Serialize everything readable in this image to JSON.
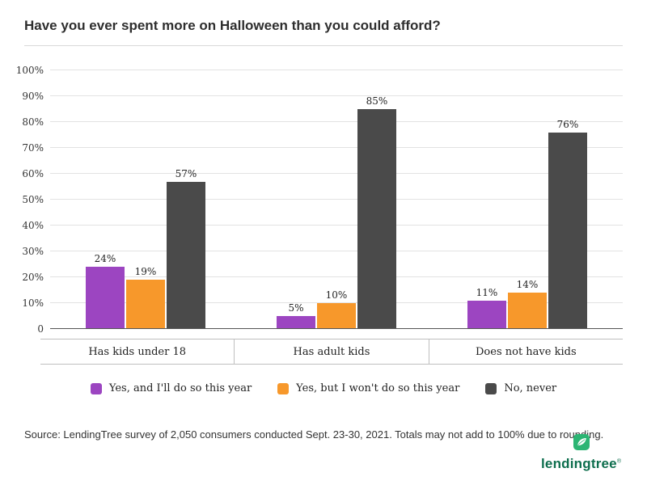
{
  "chart_data": {
    "type": "bar",
    "title": "Have you ever spent more on Halloween than you could afford?",
    "categories": [
      "Has kids under 18",
      "Has adult kids",
      "Does not have kids"
    ],
    "series": [
      {
        "name": "Yes, and I'll do so this year",
        "color": "#9c45c1",
        "values": [
          24,
          5,
          11
        ]
      },
      {
        "name": "Yes, but I won't do so this year",
        "color": "#f7982b",
        "values": [
          19,
          10,
          14
        ]
      },
      {
        "name": "No, never",
        "color": "#4a4a4a",
        "values": [
          57,
          85,
          76
        ]
      }
    ],
    "ylim": [
      0,
      100
    ],
    "yticks": [
      {
        "value": 0,
        "label": "0"
      },
      {
        "value": 10,
        "label": "10%"
      },
      {
        "value": 20,
        "label": "20%"
      },
      {
        "value": 30,
        "label": "30%"
      },
      {
        "value": 40,
        "label": "40%"
      },
      {
        "value": 50,
        "label": "50%"
      },
      {
        "value": 60,
        "label": "60%"
      },
      {
        "value": 70,
        "label": "70%"
      },
      {
        "value": 80,
        "label": "80%"
      },
      {
        "value": 90,
        "label": "90%"
      },
      {
        "value": 100,
        "label": "100%"
      }
    ],
    "grid": "horizontal",
    "legend_position": "bottom"
  },
  "source": "Source: LendingTree survey of 2,050 consumers conducted Sept. 23-30, 2021. Totals may not add to 100% due to rounding.",
  "logo": {
    "text": "lendingtree",
    "registered": "®",
    "wordmark_color": "#0d6e4d",
    "leaf_color": "#2bb573"
  }
}
